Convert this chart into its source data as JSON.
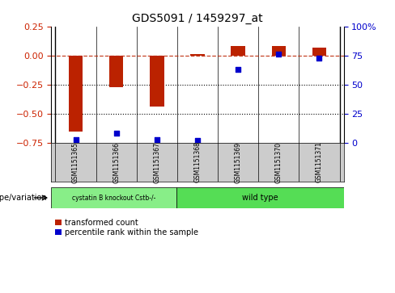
{
  "title": "GDS5091 / 1459297_at",
  "samples": [
    "GSM1151365",
    "GSM1151366",
    "GSM1151367",
    "GSM1151368",
    "GSM1151369",
    "GSM1151370",
    "GSM1151371"
  ],
  "red_values": [
    -0.65,
    -0.27,
    -0.44,
    0.01,
    0.08,
    0.08,
    0.07
  ],
  "blue_values": [
    3,
    8,
    3,
    2,
    63,
    76,
    73
  ],
  "ylim_left": [
    -0.75,
    0.25
  ],
  "ylim_right": [
    0,
    100
  ],
  "yticks_left": [
    0.25,
    0.0,
    -0.25,
    -0.5,
    -0.75
  ],
  "yticks_right": [
    100,
    75,
    50,
    25,
    0
  ],
  "hlines": [
    -0.25,
    -0.5
  ],
  "red_color": "#bb2200",
  "blue_color": "#0000cc",
  "bar_width": 0.35,
  "groups": [
    {
      "label": "cystatin B knockout Cstb-/-",
      "count": 3,
      "color": "#88ee88"
    },
    {
      "label": "wild type",
      "count": 4,
      "color": "#55dd55"
    }
  ],
  "group_label": "genotype/variation",
  "legend_red": "transformed count",
  "legend_blue": "percentile rank within the sample",
  "bg_color": "#ffffff",
  "tick_label_color_left": "#cc2200",
  "tick_label_color_right": "#0000cc",
  "sample_box_color": "#cccccc"
}
